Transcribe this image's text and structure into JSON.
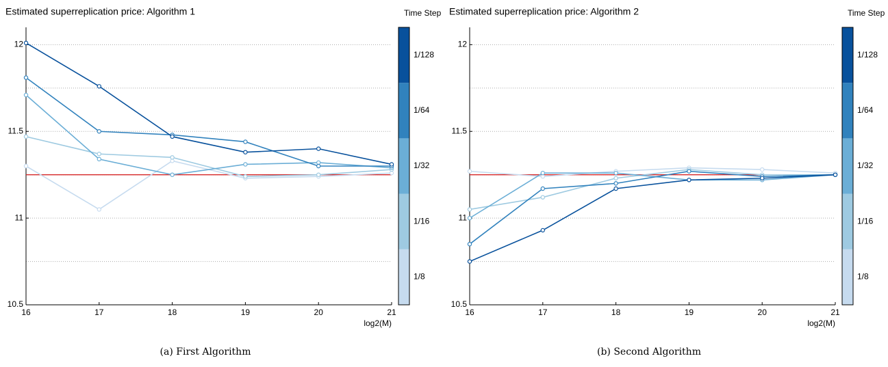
{
  "chart_data": [
    {
      "type": "line",
      "title": "Estimated superreplication price: Algorithm 1",
      "x_label": "log2(M)",
      "legend_title": "Time Step",
      "caption": "(a) First Algorithm",
      "x": [
        16,
        17,
        18,
        19,
        20,
        21
      ],
      "xlim": [
        16,
        21
      ],
      "xticks": [
        16,
        17,
        18,
        19,
        20,
        21
      ],
      "ylim": [
        10.5,
        12.1
      ],
      "yticks": [
        10.5,
        11,
        11.5,
        12
      ],
      "grid_lines": [
        10.75,
        11,
        11.25,
        11.5,
        11.75,
        12
      ],
      "reference_line": {
        "value": 11.25,
        "color": "#d62728"
      },
      "series": [
        {
          "name": "1/8",
          "color": "#c6dbef",
          "values": [
            11.3,
            11.05,
            11.33,
            11.23,
            11.24,
            11.26
          ]
        },
        {
          "name": "1/16",
          "color": "#9ecae1",
          "values": [
            11.47,
            11.37,
            11.35,
            11.24,
            11.25,
            11.28
          ]
        },
        {
          "name": "1/32",
          "color": "#6baed6",
          "values": [
            11.71,
            11.34,
            11.25,
            11.31,
            11.32,
            11.29
          ]
        },
        {
          "name": "1/64",
          "color": "#3182bd",
          "values": [
            11.81,
            11.5,
            11.48,
            11.44,
            11.3,
            11.3
          ]
        },
        {
          "name": "1/128",
          "color": "#08519c",
          "values": [
            12.01,
            11.76,
            11.47,
            11.38,
            11.4,
            11.31
          ]
        }
      ]
    },
    {
      "type": "line",
      "title": "Estimated superreplication price: Algorithm 2",
      "x_label": "log2(M)",
      "legend_title": "Time Step",
      "caption": "(b) Second Algorithm",
      "x": [
        16,
        17,
        18,
        19,
        20,
        21
      ],
      "xlim": [
        16,
        21
      ],
      "xticks": [
        16,
        17,
        18,
        19,
        20,
        21
      ],
      "ylim": [
        10.5,
        12.1
      ],
      "yticks": [
        10.5,
        11,
        11.5,
        12
      ],
      "grid_lines": [
        10.75,
        11,
        11.25,
        11.5,
        11.75,
        12
      ],
      "reference_line": {
        "value": 11.25,
        "color": "#d62728"
      },
      "series": [
        {
          "name": "1/8",
          "color": "#c6dbef",
          "values": [
            11.27,
            11.24,
            11.27,
            11.29,
            11.28,
            11.26
          ]
        },
        {
          "name": "1/16",
          "color": "#9ecae1",
          "values": [
            11.05,
            11.12,
            11.23,
            11.28,
            11.25,
            11.25
          ]
        },
        {
          "name": "1/32",
          "color": "#6baed6",
          "values": [
            11.0,
            11.26,
            11.26,
            11.22,
            11.22,
            11.25
          ]
        },
        {
          "name": "1/64",
          "color": "#3182bd",
          "values": [
            10.85,
            11.17,
            11.2,
            11.27,
            11.24,
            11.25
          ]
        },
        {
          "name": "1/128",
          "color": "#08519c",
          "values": [
            10.75,
            10.93,
            11.17,
            11.22,
            11.23,
            11.25
          ]
        }
      ]
    }
  ]
}
